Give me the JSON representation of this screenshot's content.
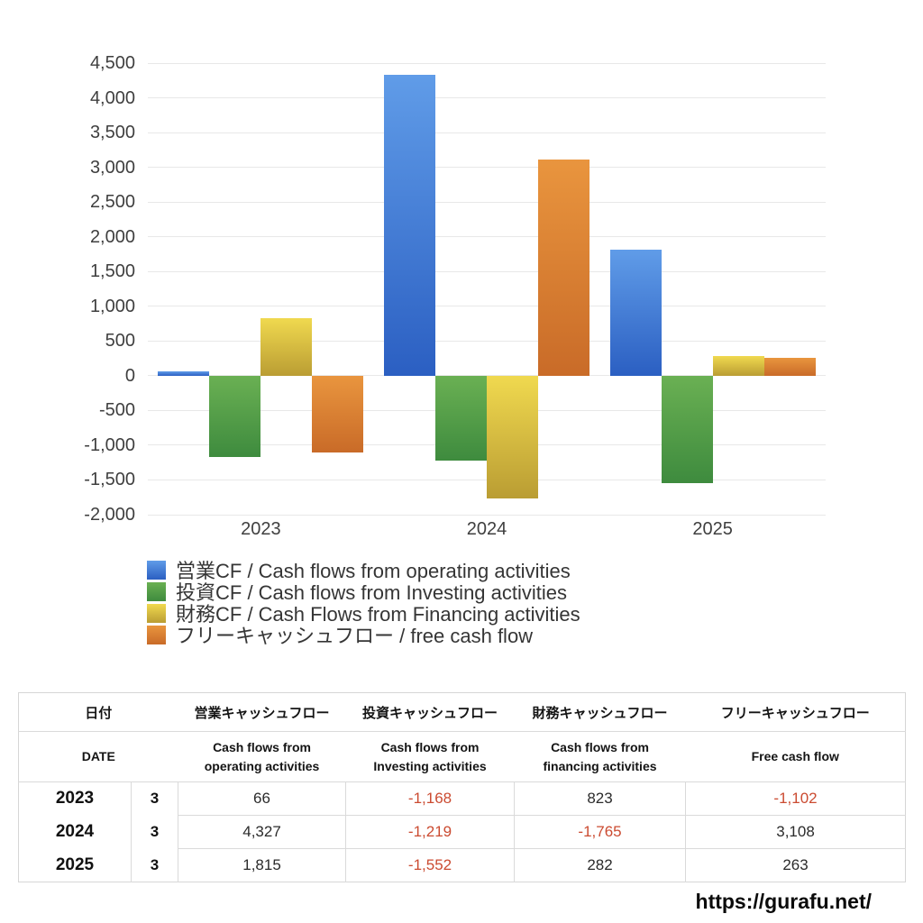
{
  "chart_data": {
    "type": "bar",
    "title": "",
    "categories": [
      "2023",
      "2024",
      "2025"
    ],
    "series": [
      {
        "key": "operating-cf",
        "name": "営業CF / Cash flows from operating activities",
        "color_top": "#609ce8",
        "color_bottom": "#2b5fc2",
        "values": [
          66,
          4327,
          1815
        ]
      },
      {
        "key": "investing-cf",
        "name": "投資CF / Cash flows from Investing activities",
        "color_top": "#6ab053",
        "color_bottom": "#3e8b3e",
        "values": [
          -1168,
          -1219,
          -1552
        ]
      },
      {
        "key": "financing-cf",
        "name": "財務CF / Cash Flows from Financing activities",
        "color_top": "#f0d94f",
        "color_bottom": "#ba9d33",
        "values": [
          823,
          -1765,
          282
        ]
      },
      {
        "key": "free-cash-flow",
        "name": "フリーキャッシュフロー / free cash flow",
        "color_top": "#e9953e",
        "color_bottom": "#c96b28",
        "values": [
          -1102,
          3108,
          263
        ]
      }
    ],
    "ylim": [
      -2000,
      4500
    ],
    "ytick_step": 500,
    "yticks": [
      {
        "value": 4500,
        "label": "4,500"
      },
      {
        "value": 4000,
        "label": "4,000"
      },
      {
        "value": 3500,
        "label": "3,500"
      },
      {
        "value": 3000,
        "label": "3,000"
      },
      {
        "value": 2500,
        "label": "2,500"
      },
      {
        "value": 2000,
        "label": "2,000"
      },
      {
        "value": 1500,
        "label": "1,500"
      },
      {
        "value": 1000,
        "label": "1,000"
      },
      {
        "value": 500,
        "label": "500"
      },
      {
        "value": 0,
        "label": "0"
      },
      {
        "value": -500,
        "label": "-500"
      },
      {
        "value": -1000,
        "label": "-1,000"
      },
      {
        "value": -1500,
        "label": "-1,500"
      },
      {
        "value": -2000,
        "label": "-2,000"
      }
    ],
    "grid": true,
    "legend_position": "bottom-left"
  },
  "table": {
    "header_jp": {
      "date": "日付",
      "operating": "営業キャッシュフロー",
      "investing": "投資キャッシュフロー",
      "financing": "財務キャッシュフロー",
      "free": "フリーキャッシュフロー"
    },
    "header_en": {
      "date": "DATE",
      "operating": "Cash flows from\noperating activities",
      "investing": "Cash flows from\nInvesting activities",
      "financing": "Cash flows from\nfinancing activities",
      "free": "Free cash flow"
    },
    "rows": [
      {
        "year": "2023",
        "month": "3",
        "values": [
          "66",
          "-1,168",
          "823",
          "-1,102"
        ]
      },
      {
        "year": "2024",
        "month": "3",
        "values": [
          "4,327",
          "-1,219",
          "-1,765",
          "3,108"
        ]
      },
      {
        "year": "2025",
        "month": "3",
        "values": [
          "1,815",
          "-1,552",
          "282",
          "263"
        ]
      }
    ],
    "negative_color": "#cb4b31"
  },
  "footer": {
    "url": "https://gurafu.net/"
  }
}
